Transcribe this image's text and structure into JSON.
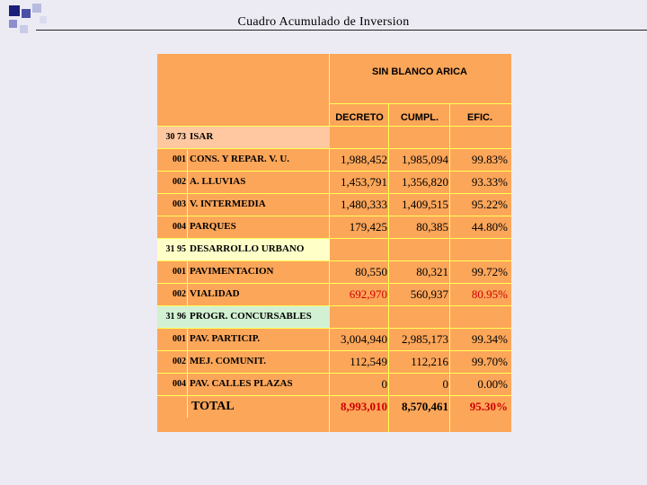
{
  "title": "Cuadro Acumulado de Inversion",
  "colors": {
    "sheet": "#fca65a",
    "grid": "#ffff55",
    "highlight_red": "#cc0000"
  },
  "table": {
    "region": "SIN BLANCO ARICA",
    "columns": [
      "DECRETO",
      "CUMPL.",
      "EFIC."
    ],
    "sections": [
      {
        "code": "30 73",
        "name": "ISAR",
        "band_color": "#ffc8a0",
        "rows": [
          {
            "code": "001",
            "name": "CONS. Y REPAR. V. U.",
            "decreto": "1,988,452",
            "cumpl": "1,985,094",
            "efic": "99.83%"
          },
          {
            "code": "002",
            "name": "A. LLUVIAS",
            "decreto": "1,453,791",
            "cumpl": "1,356,820",
            "efic": "93.33%"
          },
          {
            "code": "003",
            "name": "V. INTERMEDIA",
            "decreto": "1,480,333",
            "cumpl": "1,409,515",
            "efic": "95.22%"
          },
          {
            "code": "004",
            "name": "PARQUES",
            "decreto": "179,425",
            "cumpl": "80,385",
            "efic": "44.80%"
          }
        ]
      },
      {
        "code": "31 95",
        "name": "DESARROLLO URBANO",
        "band_color": "#ffffc8",
        "rows": [
          {
            "code": "001",
            "name": "PAVIMENTACION",
            "decreto": "80,550",
            "cumpl": "80,321",
            "efic": "99.72%"
          },
          {
            "code": "002",
            "name": "VIALIDAD",
            "decreto": "692,970",
            "cumpl": "560,937",
            "efic": "80.95%",
            "red": true
          }
        ]
      },
      {
        "code": "31 96",
        "name": "PROGR. CONCURSABLES",
        "band_color": "#d2f0d2",
        "rows": [
          {
            "code": "001",
            "name": "PAV. PARTICIP.",
            "decreto": "3,004,940",
            "cumpl": "2,985,173",
            "efic": "99.34%"
          },
          {
            "code": "002",
            "name": "MEJ. COMUNIT.",
            "decreto": "112,549",
            "cumpl": "112,216",
            "efic": "99.70%"
          },
          {
            "code": "004",
            "name": "PAV. CALLES PLAZAS",
            "decreto": "0",
            "cumpl": "0",
            "efic": "0.00%"
          }
        ]
      }
    ],
    "total": {
      "label": "TOTAL",
      "decreto": "8,993,010",
      "cumpl": "8,570,461",
      "efic": "95.30%"
    }
  }
}
